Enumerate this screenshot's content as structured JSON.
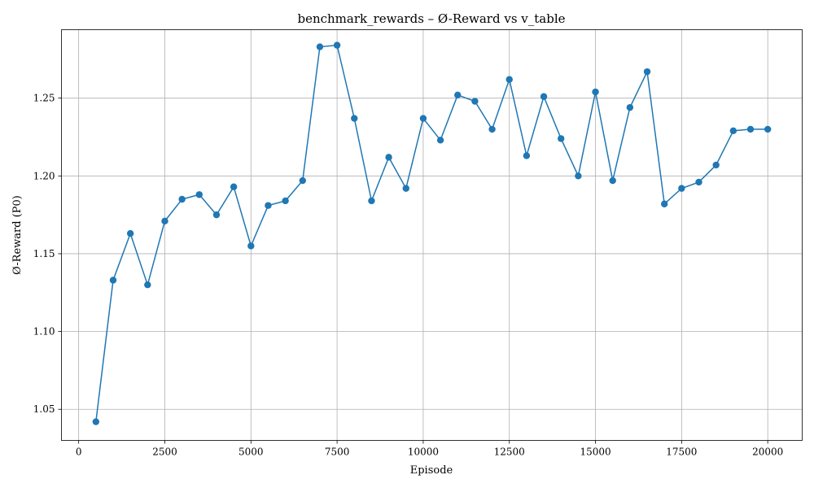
{
  "chart_data": {
    "type": "line",
    "title": "benchmark_rewards – Ø-Reward vs v_table",
    "xlabel": "Episode",
    "ylabel": "Ø-Reward (P0)",
    "xlim": [
      -500,
      21000
    ],
    "ylim": [
      1.03,
      1.294
    ],
    "xticks": [
      0,
      2500,
      5000,
      7500,
      10000,
      12500,
      15000,
      17500,
      20000
    ],
    "yticks": [
      1.05,
      1.1,
      1.15,
      1.2,
      1.25
    ],
    "ytick_labels": [
      "1.05",
      "1.10",
      "1.15",
      "1.20",
      "1.25"
    ],
    "grid": true,
    "marker": "circle",
    "color": "#1f77b4",
    "series": [
      {
        "x": [
          500,
          1000,
          1500,
          2000,
          2500,
          3000,
          3500,
          4000,
          4500,
          5000,
          5500,
          6000,
          6500,
          7000,
          7500,
          8000,
          8500,
          9000,
          9500,
          10000,
          10500,
          11000,
          11500,
          12000,
          12500,
          13000,
          13500,
          14000,
          14500,
          15000,
          15500,
          16000,
          16500,
          17000,
          17500,
          18000,
          18500,
          19000,
          19500,
          20000
        ],
        "y": [
          1.042,
          1.133,
          1.163,
          1.13,
          1.171,
          1.185,
          1.188,
          1.175,
          1.193,
          1.155,
          1.181,
          1.184,
          1.197,
          1.283,
          1.284,
          1.237,
          1.184,
          1.212,
          1.192,
          1.237,
          1.223,
          1.252,
          1.248,
          1.23,
          1.262,
          1.213,
          1.251,
          1.224,
          1.2,
          1.254,
          1.197,
          1.244,
          1.267,
          1.182,
          1.192,
          1.196,
          1.207,
          1.229,
          1.23,
          1.23
        ]
      }
    ]
  }
}
